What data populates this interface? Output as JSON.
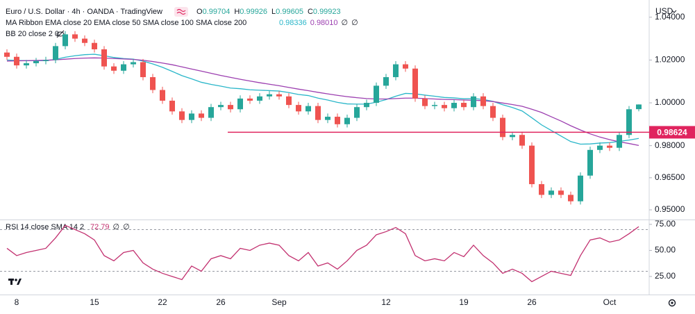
{
  "chart_data": [
    {
      "type": "candlestick",
      "title": "Euro / U.S. Dollar · 4h · OANDA · TradingView",
      "ohlc": [
        {
          "label": "O",
          "value": 0.99704
        },
        {
          "label": "H",
          "value": 0.99926
        },
        {
          "label": "L",
          "value": 0.99605
        },
        {
          "label": "C",
          "value": 0.99923
        }
      ],
      "ma_title": "MA Ribbon EMA close 20 EMA close 50 SMA close 100 SMA close 200",
      "ma_values": [
        "0.98336",
        "0.98010",
        "∅",
        "∅"
      ],
      "bb_title": "BB 20 close 2 0",
      "currency": "USD",
      "categories": [
        null,
        "8",
        null,
        null,
        null,
        null,
        null,
        null,
        null,
        "15",
        null,
        null,
        null,
        null,
        null,
        null,
        "22",
        null,
        null,
        null,
        null,
        null,
        "26",
        null,
        null,
        null,
        null,
        null,
        "Sep",
        null,
        null,
        null,
        null,
        null,
        null,
        null,
        null,
        null,
        null,
        "12",
        null,
        null,
        null,
        null,
        null,
        null,
        null,
        "19",
        null,
        null,
        null,
        null,
        null,
        null,
        "26",
        null,
        null,
        null,
        null,
        null,
        null,
        null,
        "Oct",
        null,
        null,
        null
      ],
      "open": [
        1.0235,
        1.0215,
        1.0175,
        1.0185,
        1.0195,
        1.02,
        1.0265,
        1.032,
        1.03,
        1.028,
        1.025,
        1.017,
        1.015,
        1.018,
        1.019,
        1.012,
        1.006,
        1.001,
        0.996,
        0.992,
        0.995,
        0.993,
        0.998,
        0.999,
        0.997,
        1.002,
        1.001,
        1.003,
        1.004,
        1.003,
        0.999,
        0.996,
        0.9985,
        0.992,
        0.9935,
        0.99,
        0.993,
        0.998,
        1.0,
        1.008,
        1.012,
        1.018,
        1.016,
        1.002,
        0.9985,
        0.999,
        0.9975,
        1.0,
        0.998,
        1.003,
        0.9985,
        0.993,
        0.984,
        0.985,
        0.98,
        0.962,
        0.957,
        0.959,
        0.957,
        0.954,
        0.966,
        0.978,
        0.98,
        0.979,
        0.985,
        0.99704
      ],
      "high": [
        1.025,
        1.023,
        1.02,
        1.021,
        1.0215,
        1.028,
        1.0335,
        1.0335,
        1.0315,
        1.0295,
        1.0265,
        1.0185,
        1.0195,
        1.0205,
        1.0205,
        1.0135,
        1.0075,
        1.0025,
        0.9975,
        0.9965,
        0.9965,
        0.9995,
        1.0005,
        1.0005,
        1.0035,
        1.0035,
        1.0045,
        1.0055,
        1.0055,
        1.0045,
        1.0005,
        1.0,
        1.0,
        0.995,
        0.995,
        0.9945,
        0.9995,
        1.0015,
        1.0095,
        1.0135,
        1.0195,
        1.0195,
        1.0175,
        1.0035,
        1.0005,
        1.0005,
        1.0015,
        1.0015,
        1.0045,
        1.0045,
        1.0,
        0.9945,
        0.9865,
        0.9865,
        0.9815,
        0.9635,
        0.9605,
        0.9605,
        0.9585,
        0.9675,
        0.9795,
        0.9815,
        0.9815,
        0.9865,
        0.9985,
        0.99926
      ],
      "low": [
        1.02,
        1.016,
        1.016,
        1.017,
        1.018,
        1.0185,
        1.025,
        1.0285,
        1.0265,
        1.0235,
        1.0155,
        1.0135,
        1.0135,
        1.0165,
        1.0105,
        1.0045,
        0.9995,
        0.9945,
        0.9905,
        0.9905,
        0.9915,
        0.9915,
        0.9965,
        0.9955,
        0.9955,
        0.9995,
        0.9995,
        1.0015,
        1.0015,
        0.9975,
        0.9945,
        0.9945,
        0.9905,
        0.9905,
        0.9885,
        0.9885,
        0.9915,
        0.9965,
        0.9985,
        1.0065,
        1.0105,
        1.0145,
        1.0005,
        0.997,
        0.997,
        0.996,
        0.996,
        0.9965,
        0.9965,
        0.997,
        0.9915,
        0.9825,
        0.9825,
        0.9785,
        0.9605,
        0.9555,
        0.9555,
        0.9555,
        0.9525,
        0.9525,
        0.9645,
        0.9765,
        0.9775,
        0.9775,
        0.9835,
        0.99605
      ],
      "close": [
        1.0215,
        1.0175,
        1.0185,
        1.0195,
        1.02,
        1.0265,
        1.032,
        1.03,
        1.028,
        1.025,
        1.017,
        1.015,
        1.018,
        1.019,
        1.012,
        1.006,
        1.001,
        0.996,
        0.992,
        0.995,
        0.993,
        0.998,
        0.999,
        0.997,
        1.002,
        1.001,
        1.003,
        1.004,
        1.003,
        0.999,
        0.996,
        0.9985,
        0.992,
        0.9935,
        0.99,
        0.993,
        0.998,
        1.0,
        1.008,
        1.012,
        1.018,
        1.016,
        1.002,
        0.9985,
        0.999,
        0.9975,
        1.0,
        0.998,
        1.003,
        0.9985,
        0.993,
        0.984,
        0.985,
        0.98,
        0.962,
        0.957,
        0.959,
        0.957,
        0.954,
        0.966,
        0.978,
        0.98,
        0.979,
        0.985,
        0.997,
        0.99923
      ],
      "up_color": "#26a69a",
      "down_color": "#ef5350",
      "series": [
        {
          "color": "#29b6c9",
          "values": [
            1.02,
            1.0198,
            1.0197,
            1.0197,
            1.0197,
            1.0203,
            1.0213,
            1.022,
            1.0225,
            1.0227,
            1.022,
            1.0212,
            1.0207,
            1.0204,
            1.0195,
            1.0182,
            1.0166,
            1.0147,
            1.0127,
            1.0112,
            1.0096,
            1.0086,
            1.0078,
            1.0069,
            1.0066,
            1.0061,
            1.0059,
            1.0057,
            1.0055,
            1.0048,
            1.0039,
            1.0034,
            1.0022,
            1.0013,
            1.0002,
            0.9995,
            0.9994,
            0.9994,
            1.0003,
            1.0015,
            1.0031,
            1.0044,
            1.0042,
            1.0036,
            1.0031,
            1.0025,
            1.0023,
            1.0019,
            1.002,
            1.0016,
            1.0007,
            0.9991,
            0.9978,
            0.9962,
            0.993,
            0.9897,
            0.9871,
            0.9845,
            0.9819,
            0.9807,
            0.9808,
            0.9812,
            0.9814,
            0.982,
            0.9826,
            0.98336
          ]
        },
        {
          "color": "#9c3fb0",
          "values": [
            1.0195,
            1.0196,
            1.0197,
            1.0198,
            1.0199,
            1.0201,
            1.0204,
            1.0207,
            1.0209,
            1.021,
            1.0209,
            1.0207,
            1.0205,
            1.0203,
            1.0199,
            1.0193,
            1.0186,
            1.0178,
            1.0168,
            1.0158,
            1.0148,
            1.0138,
            1.0128,
            1.0119,
            1.011,
            1.0102,
            1.0094,
            1.0087,
            1.008,
            1.0072,
            1.0064,
            1.0057,
            1.0049,
            1.0042,
            1.0035,
            1.0029,
            1.0024,
            1.002,
            1.0018,
            1.0018,
            1.002,
            1.0022,
            1.0022,
            1.002,
            1.0018,
            1.0016,
            1.0015,
            1.0013,
            1.0012,
            1.001,
            1.0006,
            0.9999,
            0.9992,
            0.9984,
            0.997,
            0.9955,
            0.9935,
            0.9915,
            0.9893,
            0.9873,
            0.9855,
            0.984,
            0.9828,
            0.9818,
            0.981,
            0.9801
          ]
        }
      ],
      "hline": {
        "value": 0.98624,
        "color": "#e0245e"
      },
      "ylim": [
        0.9458,
        1.0448
      ],
      "yticks": [
        {
          "value": 0.95,
          "label": "0.95000"
        },
        {
          "value": 0.965,
          "label": "0.96500"
        },
        {
          "value": 0.98,
          "label": "0.98000"
        },
        {
          "value": 1.0,
          "label": "1.00000"
        },
        {
          "value": 1.02,
          "label": "1.02000"
        },
        {
          "value": 1.04,
          "label": "1.04000"
        }
      ]
    },
    {
      "type": "line",
      "title": "RSI 14 close SMA 14 2",
      "last_labels": [
        "72.79",
        "∅",
        "∅"
      ],
      "series": [
        {
          "color": "#c2306f",
          "values": [
            52,
            45,
            48,
            50,
            52,
            62,
            74,
            70,
            66,
            60,
            45,
            40,
            48,
            50,
            38,
            32,
            28,
            25,
            22,
            35,
            30,
            42,
            45,
            42,
            52,
            50,
            55,
            57,
            55,
            45,
            40,
            48,
            35,
            38,
            32,
            40,
            50,
            55,
            65,
            68,
            72,
            66,
            45,
            40,
            42,
            40,
            48,
            44,
            55,
            45,
            38,
            28,
            32,
            28,
            20,
            25,
            30,
            28,
            26,
            45,
            60,
            62,
            58,
            60,
            66,
            72.79
          ]
        }
      ],
      "bands": [
        30,
        70
      ],
      "ylim": [
        10.3,
        78.3
      ],
      "yticks": [
        {
          "value": 25,
          "label": "25.00"
        },
        {
          "value": 50,
          "label": "50.00"
        },
        {
          "value": 75,
          "label": "75.00"
        }
      ]
    }
  ]
}
